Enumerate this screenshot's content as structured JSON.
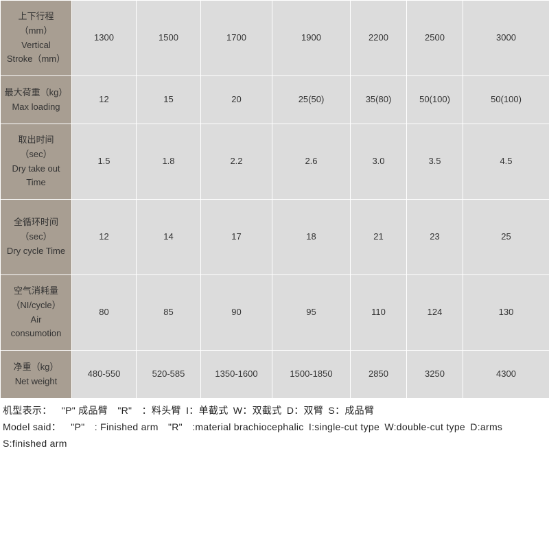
{
  "table": {
    "rows": [
      {
        "header_lines": [
          "上下行程",
          "（mm）",
          "Vertical",
          "Stroke（mm）"
        ],
        "cells": [
          "1300",
          "1500",
          "1700",
          "1900",
          "2200",
          "2500",
          "3000"
        ],
        "height_class": "tall-row"
      },
      {
        "header_lines": [
          "最大荷重（kg）",
          "Max loading"
        ],
        "cells": [
          "12",
          "15",
          "20",
          "25(50)",
          "35(80)",
          "50(100)",
          "50(100)"
        ],
        "height_class": "mid-row"
      },
      {
        "header_lines": [
          "取出时间",
          "（sec）",
          "Dry take out",
          "Time"
        ],
        "cells": [
          "1.5",
          "1.8",
          "2.2",
          "2.6",
          "3.0",
          "3.5",
          "4.5"
        ],
        "height_class": "tall-row"
      },
      {
        "header_lines": [
          "全循环时间",
          "（sec）",
          "Dry cycle Time"
        ],
        "cells": [
          "12",
          "14",
          "17",
          "18",
          "21",
          "23",
          "25"
        ],
        "height_class": "tall-row"
      },
      {
        "header_lines": [
          "空气消耗量",
          "（NI/cycle）",
          "Air",
          "consumotion"
        ],
        "cells": [
          "80",
          "85",
          "90",
          "95",
          "110",
          "124",
          "130"
        ],
        "height_class": "tall-row"
      },
      {
        "header_lines": [
          "净重（kg）",
          "Net weight"
        ],
        "cells": [
          "480-550",
          "520-585",
          "1350-1600",
          "1500-1850",
          "2850",
          "3250",
          "4300"
        ],
        "height_class": "mid-row"
      }
    ],
    "col_classes": [
      "col-0",
      "col-1",
      "col-2",
      "col-3",
      "col-4",
      "col-5",
      "col-6",
      "col-7"
    ]
  },
  "footer": {
    "line1": "机型表示： \"P\" 成品臂 \"R\" ：料头臂 I：单截式 W：双截式 D：双臂 S：成品臂",
    "line2": "Model said： \"P\" : Finished arm \"R\" :material brachiocephalic I:single-cut type W:double-cut type D:arms",
    "line3": "S:finished arm"
  },
  "colors": {
    "header_bg": "#a89e92",
    "cell_bg": "#dcdcdc",
    "border": "#ffffff",
    "text": "#333333"
  }
}
